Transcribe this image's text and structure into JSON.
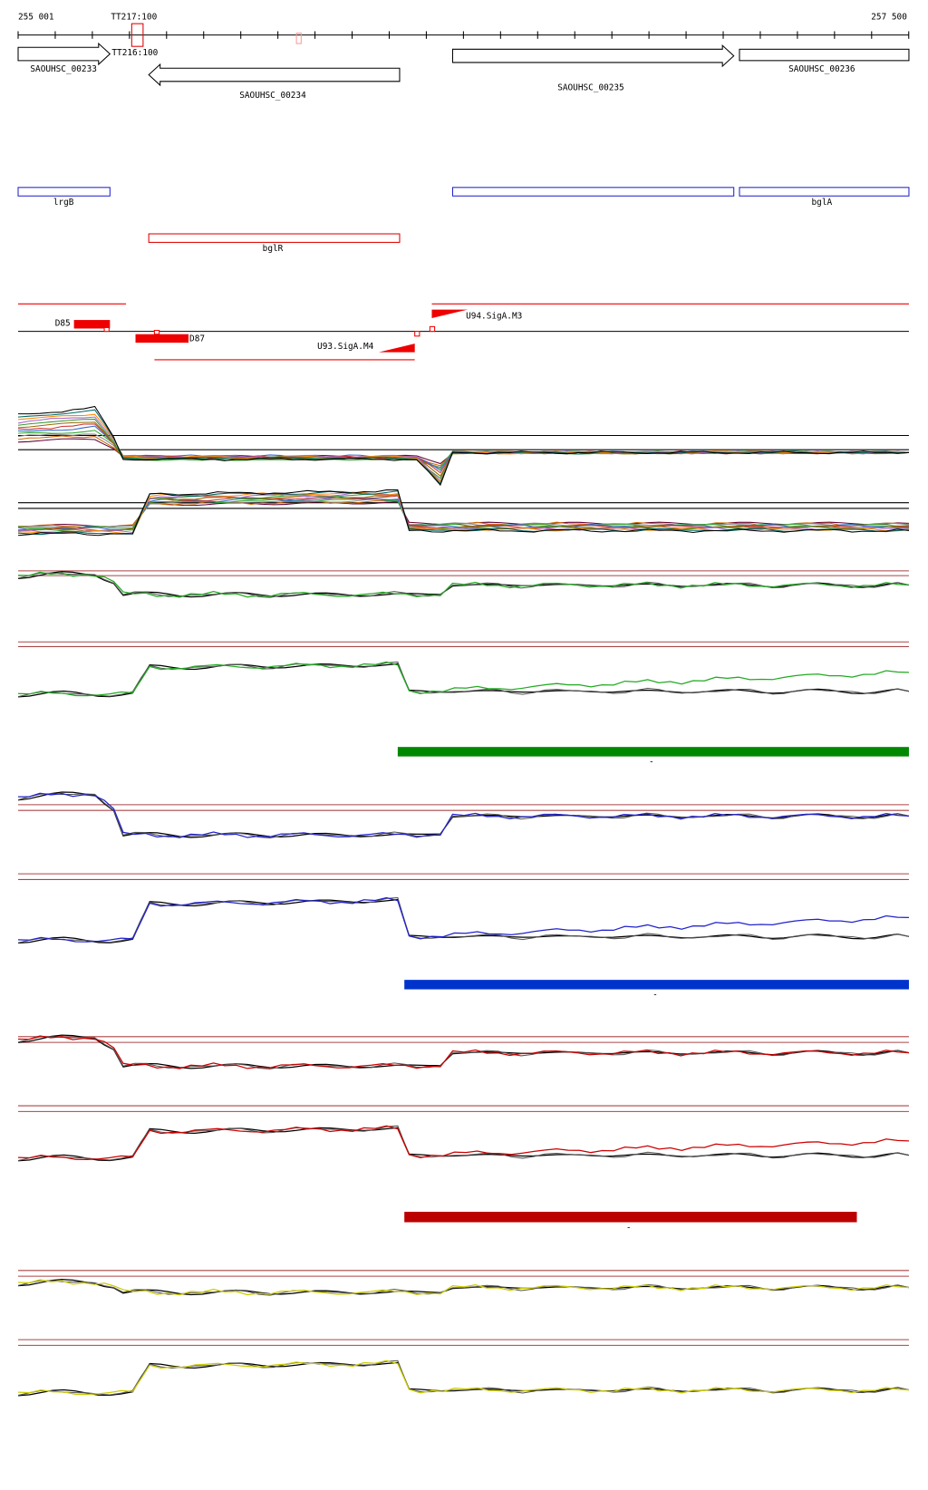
{
  "ruler": {
    "start": "255 001",
    "end": "257 500"
  },
  "terminators": [
    "TT217:100",
    "TT216:100"
  ],
  "genes": [
    "SAOUHSC_00233",
    "SAOUHSC_00234",
    "SAOUHSC_00235",
    "SAOUHSC_00236"
  ],
  "annotations": {
    "forward": [
      "lrgB",
      "bglA"
    ],
    "reverse": [
      "bglR"
    ]
  },
  "segments": [
    "D85",
    "D87",
    "U93.SigA.M4",
    "U94.SigA.M3"
  ],
  "condition_bars": [
    "-",
    "-",
    "-"
  ]
}
